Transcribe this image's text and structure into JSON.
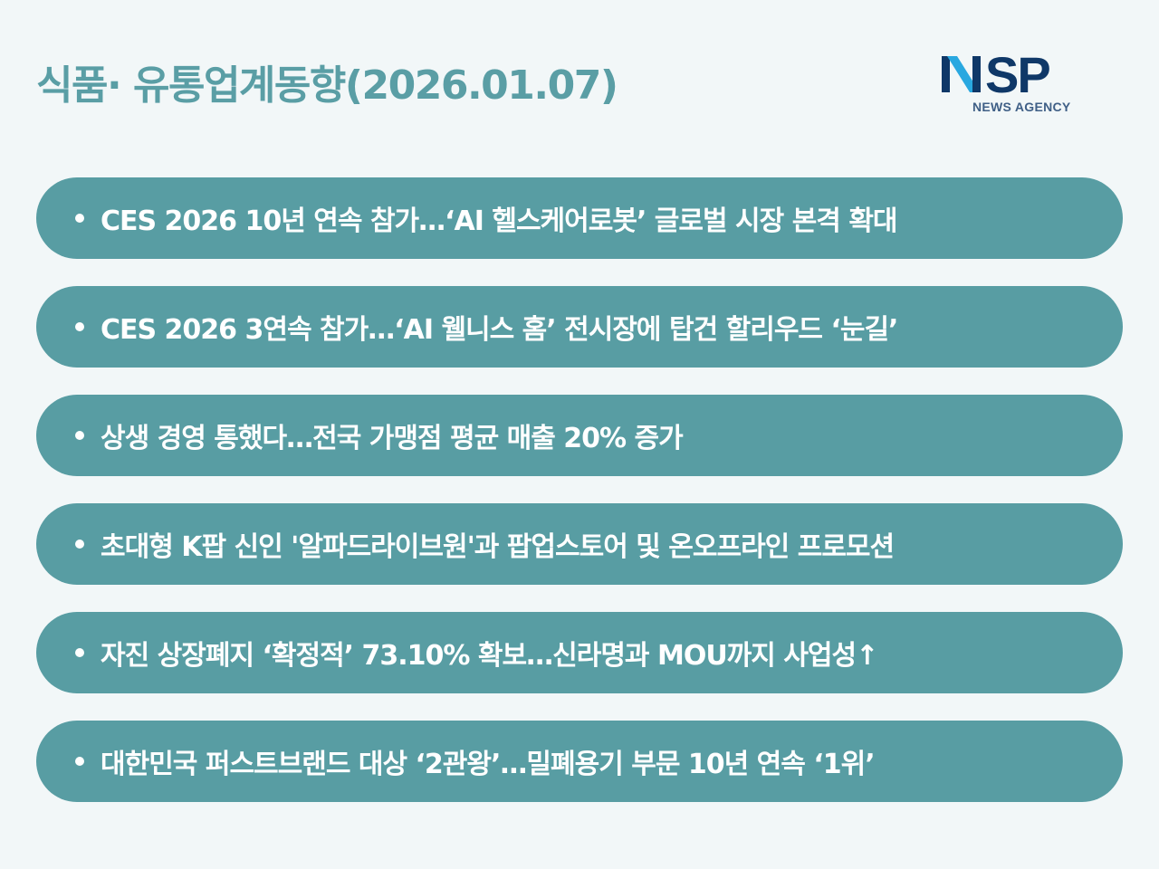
{
  "header": {
    "title": "식품· 유통업계동향(2026.01.07)",
    "logo": {
      "main": "NSP",
      "sub": "NEWS AGENCY",
      "colors": {
        "navy": "#0f3868",
        "cyan": "#29a8e0"
      }
    }
  },
  "colors": {
    "background": "#f2f7f8",
    "accent": "#589da3",
    "title": "#5a9ea5"
  },
  "headlines": [
    {
      "text": "CES 2026 10년 연속 참가…‘AI 헬스케어로봇’ 글로벌 시장 본격 확대"
    },
    {
      "text": "CES 2026 3연속 참가…‘AI 웰니스 홈’ 전시장에 탑건 할리우드 ‘눈길’"
    },
    {
      "text": "상생 경영 통했다…전국 가맹점 평균 매출 20% 증가"
    },
    {
      "text": "초대형 K팝 신인 '알파드라이브원'과 팝업스토어 및 온오프라인 프로모션"
    },
    {
      "text": "자진 상장폐지 ‘확정적’ 73.10% 확보…신라명과 MOU까지 사업성↑"
    },
    {
      "text": "대한민국 퍼스트브랜드 대상 ‘2관왕’…밀폐용기 부문 10년 연속 ‘1위’"
    }
  ]
}
